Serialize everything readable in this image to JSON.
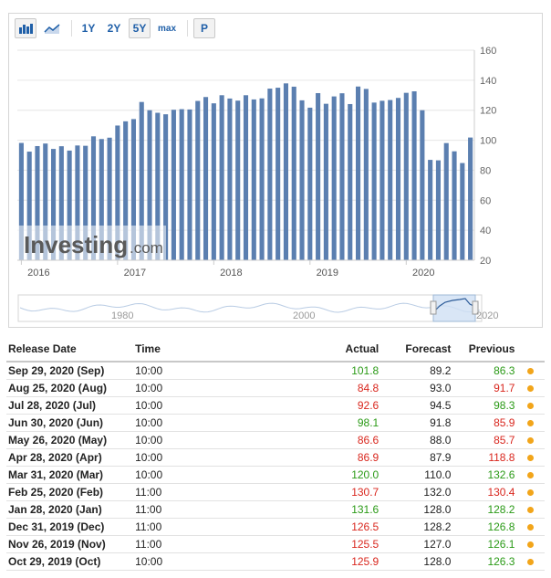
{
  "toolbar": {
    "bar_icon": "bar-chart-icon",
    "area_icon": "area-chart-icon",
    "ranges": [
      "1Y",
      "2Y",
      "5Y",
      "max"
    ],
    "active_range": "5Y",
    "p_label": "P"
  },
  "chart_data": {
    "type": "bar",
    "bar_color": "#5b7fb0",
    "y_axis_ticks": [
      "160",
      "140",
      "120",
      "100",
      "80",
      "60",
      "40",
      "20"
    ],
    "ylim": [
      20,
      160
    ],
    "x_tick_labels": [
      "2016",
      "2017",
      "2018",
      "2019",
      "2020"
    ],
    "values": [
      98.2,
      92.4,
      96.1,
      97.8,
      94.2,
      96.0,
      93.1,
      96.5,
      96.3,
      102.6,
      100.8,
      101.7,
      109.8,
      112.6,
      114.1,
      125.5,
      120.0,
      118.3,
      117.3,
      120.3,
      120.7,
      120.5,
      126.2,
      128.8,
      124.6,
      130.0,
      127.8,
      126.4,
      130.0,
      127.2,
      127.9,
      134.4,
      135.0,
      137.9,
      135.7,
      126.6,
      121.7,
      131.4,
      124.3,
      129.2,
      131.3,
      124.1,
      135.8,
      134.2,
      125.1,
      126.3,
      126.8,
      128.2,
      131.6,
      132.6,
      120.0,
      86.9,
      86.6,
      98.1,
      92.6,
      84.8,
      101.8
    ],
    "watermark_brand": "Investing",
    "watermark_suffix": ".com",
    "navigator": {
      "labels": [
        "1980",
        "2000",
        "2020"
      ]
    }
  },
  "table": {
    "headers": {
      "release_date": "Release Date",
      "time": "Time",
      "actual": "Actual",
      "forecast": "Forecast",
      "previous": "Previous"
    },
    "rows": [
      {
        "date": "Sep 29, 2020 (Sep)",
        "time": "10:00",
        "actual": "101.8",
        "actual_color": "green",
        "forecast": "89.2",
        "previous": "86.3",
        "previous_color": "green"
      },
      {
        "date": "Aug 25, 2020 (Aug)",
        "time": "10:00",
        "actual": "84.8",
        "actual_color": "red",
        "forecast": "93.0",
        "previous": "91.7",
        "previous_color": "red"
      },
      {
        "date": "Jul 28, 2020 (Jul)",
        "time": "10:00",
        "actual": "92.6",
        "actual_color": "red",
        "forecast": "94.5",
        "previous": "98.3",
        "previous_color": "green"
      },
      {
        "date": "Jun 30, 2020 (Jun)",
        "time": "10:00",
        "actual": "98.1",
        "actual_color": "green",
        "forecast": "91.8",
        "previous": "85.9",
        "previous_color": "red"
      },
      {
        "date": "May 26, 2020 (May)",
        "time": "10:00",
        "actual": "86.6",
        "actual_color": "red",
        "forecast": "88.0",
        "previous": "85.7",
        "previous_color": "red"
      },
      {
        "date": "Apr 28, 2020 (Apr)",
        "time": "10:00",
        "actual": "86.9",
        "actual_color": "red",
        "forecast": "87.9",
        "previous": "118.8",
        "previous_color": "red"
      },
      {
        "date": "Mar 31, 2020 (Mar)",
        "time": "10:00",
        "actual": "120.0",
        "actual_color": "green",
        "forecast": "110.0",
        "previous": "132.6",
        "previous_color": "green"
      },
      {
        "date": "Feb 25, 2020 (Feb)",
        "time": "11:00",
        "actual": "130.7",
        "actual_color": "red",
        "forecast": "132.0",
        "previous": "130.4",
        "previous_color": "red"
      },
      {
        "date": "Jan 28, 2020 (Jan)",
        "time": "11:00",
        "actual": "131.6",
        "actual_color": "green",
        "forecast": "128.0",
        "previous": "128.2",
        "previous_color": "green"
      },
      {
        "date": "Dec 31, 2019 (Dec)",
        "time": "11:00",
        "actual": "126.5",
        "actual_color": "red",
        "forecast": "128.2",
        "previous": "126.8",
        "previous_color": "green"
      },
      {
        "date": "Nov 26, 2019 (Nov)",
        "time": "11:00",
        "actual": "125.5",
        "actual_color": "red",
        "forecast": "127.0",
        "previous": "126.1",
        "previous_color": "green"
      },
      {
        "date": "Oct 29, 2019 (Oct)",
        "time": "10:00",
        "actual": "125.9",
        "actual_color": "red",
        "forecast": "128.0",
        "previous": "126.3",
        "previous_color": "green"
      }
    ]
  }
}
